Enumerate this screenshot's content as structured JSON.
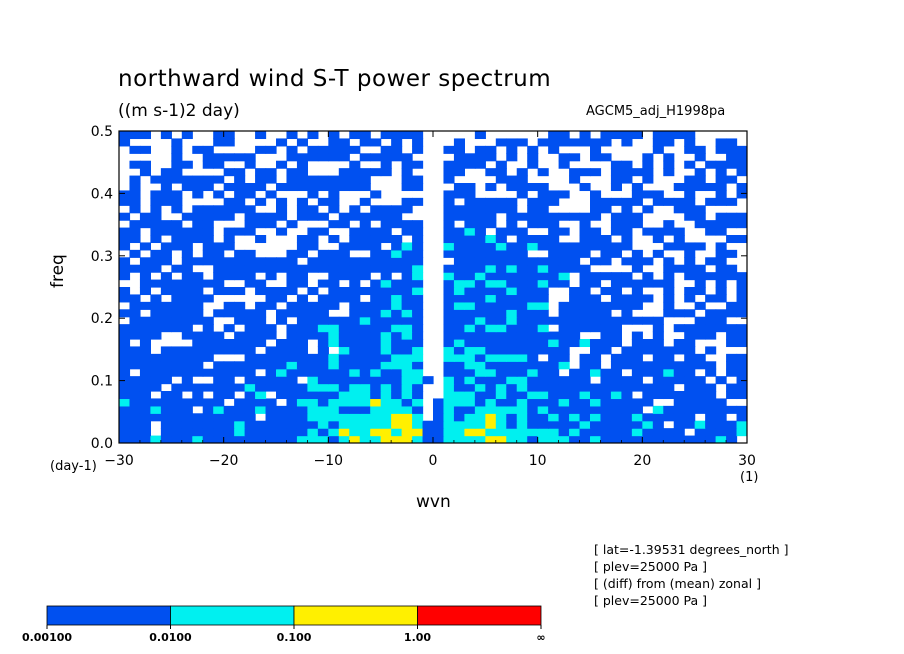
{
  "header": {
    "title": "northward wind S-T power spectrum",
    "units": "((m s-1)2 day)",
    "run": "AGCM5_adj_H1998pa"
  },
  "axes": {
    "xlabel": "wvn",
    "ylabel": "freq",
    "x_unit": "(1)",
    "y_unit": "(day-1)"
  },
  "info": [
    "[ lat=-1.39531 degrees_north ]",
    "[ plev=25000 Pa ]",
    "[ (diff) from (mean) zonal ]",
    "[ plev=25000 Pa ]"
  ],
  "colorbar": {
    "levels": [
      "0.00100",
      "0.0100",
      "0.100",
      "1.00",
      "∞"
    ],
    "colors": [
      "#0050f0",
      "#00f0f0",
      "#fff000",
      "#ff0000"
    ]
  },
  "chart_data": {
    "type": "heatmap",
    "title": "northward wind S-T power spectrum",
    "subtitle": "((m s-1)2 day)",
    "xlabel": "wvn",
    "ylabel": "freq",
    "xlim": [
      -30,
      30
    ],
    "ylim": [
      0,
      0.5
    ],
    "xticks": [
      -30,
      -20,
      -10,
      0,
      10,
      20,
      30
    ],
    "yticks": [
      0.0,
      0.1,
      0.2,
      0.3,
      0.4,
      0.5
    ],
    "xtick_labels": [
      "−30",
      "−20",
      "−10",
      "0",
      "10",
      "20",
      "30"
    ],
    "ytick_labels": [
      "0.0",
      "0.1",
      "0.2",
      "0.3",
      "0.4",
      "0.5"
    ],
    "contour_levels": [
      0.001,
      0.01,
      0.1,
      1.0
    ],
    "level_colors": [
      "#0050f0",
      "#00f0f0",
      "#fff000",
      "#ff0000"
    ],
    "grid": false,
    "regions": [
      {
        "level": "0.0100-0.100",
        "x": [
          -14,
          0
        ],
        "y": [
          0.0,
          0.22
        ],
        "note": "dense"
      },
      {
        "level": "0.0100-0.100",
        "x": [
          0,
          15
        ],
        "y": [
          0.0,
          0.35
        ],
        "note": "dense"
      },
      {
        "level": "0.100-1.00",
        "x": [
          -7,
          -3
        ],
        "y": [
          0.04,
          0.1
        ]
      },
      {
        "level": "0.100-1.00",
        "x": [
          4,
          8
        ],
        "y": [
          0.0,
          0.04
        ]
      },
      {
        "level": "below 0.00100",
        "x": [
          -30,
          -22
        ],
        "y": [
          0.3,
          0.5
        ]
      },
      {
        "level": "below 0.00100",
        "x": [
          -1,
          0
        ],
        "y": [
          0.0,
          0.5
        ]
      }
    ]
  }
}
